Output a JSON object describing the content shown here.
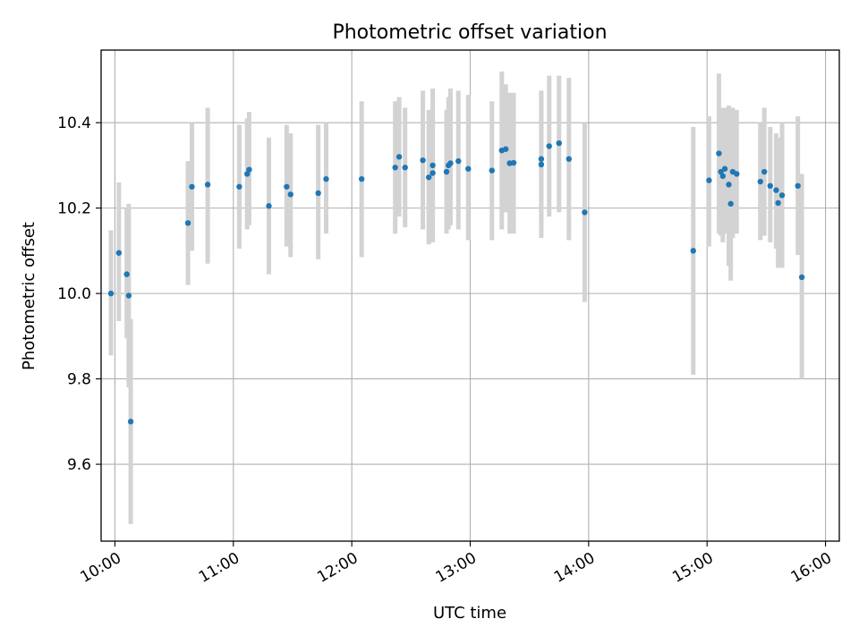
{
  "chart_data": {
    "type": "scatter",
    "title": "Photometric offset variation",
    "xlabel": "UTC time",
    "ylabel": "Photometric offset",
    "xlim": [
      "09:53",
      "16:07"
    ],
    "ylim": [
      9.42,
      10.57
    ],
    "xticks": [
      "10:00",
      "11:00",
      "12:00",
      "13:00",
      "14:00",
      "15:00",
      "16:00"
    ],
    "yticks": [
      "9.6",
      "9.8",
      "10.0",
      "10.2",
      "10.4"
    ],
    "grid": true,
    "colors": {
      "point": "#1f77b4",
      "errorbar": "#d3d3d3",
      "grid": "#b0b0b0"
    },
    "points": [
      {
        "x": "09:58",
        "y": 10.0,
        "ylow": 9.855,
        "yhigh": 10.148
      },
      {
        "x": "10:02",
        "y": 10.095,
        "ylow": 9.935,
        "yhigh": 10.26
      },
      {
        "x": "10:06",
        "y": 10.045,
        "ylow": 9.895,
        "yhigh": 10.2
      },
      {
        "x": "10:07",
        "y": 9.995,
        "ylow": 9.78,
        "yhigh": 10.21
      },
      {
        "x": "10:08",
        "y": 9.7,
        "ylow": 9.46,
        "yhigh": 9.94
      },
      {
        "x": "10:37",
        "y": 10.165,
        "ylow": 10.02,
        "yhigh": 10.31
      },
      {
        "x": "10:39",
        "y": 10.25,
        "ylow": 10.1,
        "yhigh": 10.4
      },
      {
        "x": "10:47",
        "y": 10.255,
        "ylow": 10.07,
        "yhigh": 10.435
      },
      {
        "x": "11:03",
        "y": 10.25,
        "ylow": 10.105,
        "yhigh": 10.395
      },
      {
        "x": "11:07",
        "y": 10.28,
        "ylow": 10.15,
        "yhigh": 10.41
      },
      {
        "x": "11:08",
        "y": 10.29,
        "ylow": 10.16,
        "yhigh": 10.425
      },
      {
        "x": "11:18",
        "y": 10.205,
        "ylow": 10.045,
        "yhigh": 10.365
      },
      {
        "x": "11:27",
        "y": 10.25,
        "ylow": 10.11,
        "yhigh": 10.395
      },
      {
        "x": "11:29",
        "y": 10.232,
        "ylow": 10.085,
        "yhigh": 10.375
      },
      {
        "x": "11:43",
        "y": 10.235,
        "ylow": 10.08,
        "yhigh": 10.395
      },
      {
        "x": "11:47",
        "y": 10.268,
        "ylow": 10.14,
        "yhigh": 10.4
      },
      {
        "x": "12:05",
        "y": 10.268,
        "ylow": 10.085,
        "yhigh": 10.45
      },
      {
        "x": "12:22",
        "y": 10.295,
        "ylow": 10.14,
        "yhigh": 10.45
      },
      {
        "x": "12:24",
        "y": 10.32,
        "ylow": 10.18,
        "yhigh": 10.46
      },
      {
        "x": "12:27",
        "y": 10.295,
        "ylow": 10.155,
        "yhigh": 10.435
      },
      {
        "x": "12:36",
        "y": 10.312,
        "ylow": 10.15,
        "yhigh": 10.475
      },
      {
        "x": "12:39",
        "y": 10.272,
        "ylow": 10.115,
        "yhigh": 10.43
      },
      {
        "x": "12:41",
        "y": 10.282,
        "ylow": 10.12,
        "yhigh": 10.445
      },
      {
        "x": "12:41",
        "y": 10.3,
        "ylow": 10.14,
        "yhigh": 10.48
      },
      {
        "x": "12:48",
        "y": 10.285,
        "ylow": 10.14,
        "yhigh": 10.43
      },
      {
        "x": "12:49",
        "y": 10.3,
        "ylow": 10.15,
        "yhigh": 10.46
      },
      {
        "x": "12:50",
        "y": 10.305,
        "ylow": 10.16,
        "yhigh": 10.48
      },
      {
        "x": "12:54",
        "y": 10.31,
        "ylow": 10.15,
        "yhigh": 10.475
      },
      {
        "x": "12:59",
        "y": 10.292,
        "ylow": 10.125,
        "yhigh": 10.465
      },
      {
        "x": "13:11",
        "y": 10.288,
        "ylow": 10.125,
        "yhigh": 10.45
      },
      {
        "x": "13:16",
        "y": 10.335,
        "ylow": 10.15,
        "yhigh": 10.52
      },
      {
        "x": "13:18",
        "y": 10.338,
        "ylow": 10.19,
        "yhigh": 10.49
      },
      {
        "x": "13:20",
        "y": 10.305,
        "ylow": 10.14,
        "yhigh": 10.47
      },
      {
        "x": "13:22",
        "y": 10.306,
        "ylow": 10.14,
        "yhigh": 10.47
      },
      {
        "x": "13:36",
        "y": 10.315,
        "ylow": 10.16,
        "yhigh": 10.475
      },
      {
        "x": "13:36",
        "y": 10.302,
        "ylow": 10.13,
        "yhigh": 10.475
      },
      {
        "x": "13:40",
        "y": 10.345,
        "ylow": 10.18,
        "yhigh": 10.51
      },
      {
        "x": "13:45",
        "y": 10.352,
        "ylow": 10.19,
        "yhigh": 10.51
      },
      {
        "x": "13:50",
        "y": 10.315,
        "ylow": 10.125,
        "yhigh": 10.505
      },
      {
        "x": "13:58",
        "y": 10.19,
        "ylow": 9.98,
        "yhigh": 10.4
      },
      {
        "x": "14:53",
        "y": 10.1,
        "ylow": 9.81,
        "yhigh": 10.39
      },
      {
        "x": "15:01",
        "y": 10.265,
        "ylow": 10.11,
        "yhigh": 10.415
      },
      {
        "x": "15:06",
        "y": 10.328,
        "ylow": 10.14,
        "yhigh": 10.515
      },
      {
        "x": "15:07",
        "y": 10.285,
        "ylow": 10.135,
        "yhigh": 10.43
      },
      {
        "x": "15:08",
        "y": 10.275,
        "ylow": 10.12,
        "yhigh": 10.435
      },
      {
        "x": "15:09",
        "y": 10.292,
        "ylow": 10.14,
        "yhigh": 10.435
      },
      {
        "x": "15:11",
        "y": 10.255,
        "ylow": 10.065,
        "yhigh": 10.44
      },
      {
        "x": "15:12",
        "y": 10.21,
        "ylow": 10.03,
        "yhigh": 10.39
      },
      {
        "x": "15:13",
        "y": 10.285,
        "ylow": 10.13,
        "yhigh": 10.435
      },
      {
        "x": "15:15",
        "y": 10.28,
        "ylow": 10.14,
        "yhigh": 10.43
      },
      {
        "x": "15:27",
        "y": 10.262,
        "ylow": 10.125,
        "yhigh": 10.4
      },
      {
        "x": "15:29",
        "y": 10.285,
        "ylow": 10.135,
        "yhigh": 10.435
      },
      {
        "x": "15:32",
        "y": 10.252,
        "ylow": 10.12,
        "yhigh": 10.39
      },
      {
        "x": "15:35",
        "y": 10.242,
        "ylow": 10.105,
        "yhigh": 10.375
      },
      {
        "x": "15:36",
        "y": 10.212,
        "ylow": 10.06,
        "yhigh": 10.365
      },
      {
        "x": "15:38",
        "y": 10.23,
        "ylow": 10.06,
        "yhigh": 10.4
      },
      {
        "x": "15:46",
        "y": 10.252,
        "ylow": 10.09,
        "yhigh": 10.415
      },
      {
        "x": "15:48",
        "y": 10.038,
        "ylow": 9.8,
        "yhigh": 10.28
      }
    ]
  }
}
